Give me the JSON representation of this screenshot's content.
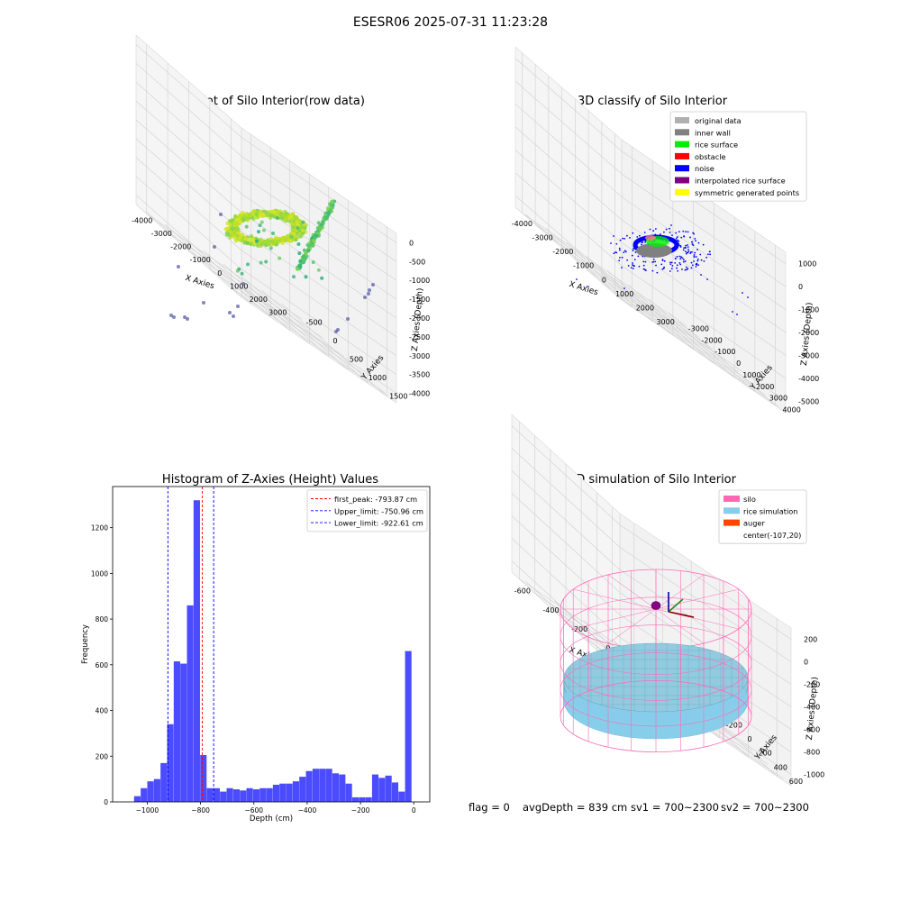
{
  "suptitle": "ESESR06 2025-07-31 11:23:28",
  "colors": {
    "hist_bar": "#4b4bff",
    "peak_line": "#ff0000",
    "limit_line": "#0000ff",
    "silo": "#ff69b4",
    "rice": "#87ceeb",
    "auger": "#ff4500",
    "noise": "#0000ff",
    "inner_wall": "#808080",
    "rice_surface": "#00ee00"
  },
  "footer": {
    "flag": "flag = 0",
    "avg_depth": "avgDepth = 839 cm",
    "sv1": "sv1 = 700~2300",
    "sv2": "sv2 = 700~2300"
  },
  "chart_data": [
    {
      "id": "raw3d",
      "type": "scatter",
      "projection": "3d",
      "title": "3D Plot of Silo Interior(row data)",
      "xlabel": "X Axies",
      "ylabel": "Y Axies",
      "zlabel": "Z Axies (Depth)",
      "xticks": [
        "-4000",
        "-3000",
        "-2000",
        "-1000",
        "0",
        "1000",
        "2000",
        "3000"
      ],
      "yticks": [
        "-500",
        "0",
        "500",
        "1000",
        "1500"
      ],
      "zticks": [
        "0",
        "-500",
        "-1000",
        "-1500",
        "-2000",
        "-2500",
        "-3000",
        "-3500",
        "-4000"
      ],
      "xlim": [
        -4200,
        3500
      ],
      "ylim": [
        -800,
        1800
      ],
      "zlim": [
        -4300,
        200
      ],
      "colormap": "viridis"
    },
    {
      "id": "class3d",
      "type": "scatter",
      "projection": "3d",
      "title": "3D classify of Silo Interior",
      "xlabel": "X Axies",
      "ylabel": "Y Axies",
      "zlabel": "Z Axies (Depth)",
      "xticks": [
        "-4000",
        "-3000",
        "-2000",
        "-1000",
        "0",
        "1000",
        "2000",
        "3000"
      ],
      "yticks": [
        "-3000",
        "-2000",
        "-1000",
        "0",
        "1000",
        "2000",
        "3000",
        "4000"
      ],
      "zticks": [
        "1000",
        "0",
        "-1000",
        "-2000",
        "-3000",
        "-4000",
        "-5000"
      ],
      "legend": [
        {
          "label": "original data",
          "color": "#b0b0b0"
        },
        {
          "label": "inner wall",
          "color": "#808080"
        },
        {
          "label": "rice surface",
          "color": "#00ee00"
        },
        {
          "label": "obstacle",
          "color": "#ff0000"
        },
        {
          "label": "noise",
          "color": "#0000ff"
        },
        {
          "label": "interpolated rice surface",
          "color": "#800080"
        },
        {
          "label": "symmetric generated points",
          "color": "#ffff00"
        }
      ],
      "legend_loc": "upper right"
    },
    {
      "id": "hist",
      "type": "bar",
      "title": "Histogram of Z-Axies (Height) Values",
      "xlabel": "Depth (cm)",
      "ylabel": "Frequency",
      "xlim": [
        -1130,
        60
      ],
      "ylim": [
        0,
        1380
      ],
      "xticks": [
        -1000,
        -800,
        -600,
        -400,
        -200,
        0
      ],
      "yticks": [
        0,
        200,
        400,
        600,
        800,
        1000,
        1200
      ],
      "bin_width": 24.8,
      "bin_start": -1049.5,
      "values": [
        25,
        60,
        90,
        100,
        170,
        340,
        615,
        605,
        860,
        1320,
        205,
        60,
        60,
        45,
        60,
        55,
        50,
        60,
        55,
        60,
        60,
        75,
        80,
        80,
        90,
        110,
        135,
        145,
        145,
        145,
        125,
        120,
        80,
        20,
        20,
        20,
        120,
        105,
        115,
        85,
        45,
        660
      ],
      "vlines": [
        {
          "x": -793.87,
          "label": "first_peak: -793.87 cm",
          "color": "#ff0000"
        },
        {
          "x": -750.96,
          "label": "Upper_limit: -750.96 cm",
          "color": "#0000ff"
        },
        {
          "x": -922.61,
          "label": "Lower_limit: -922.61 cm",
          "color": "#0000ff"
        }
      ],
      "legend_loc": "upper right"
    },
    {
      "id": "sim3d",
      "type": "area",
      "projection": "3d",
      "title": "3D simulation of Silo Interior",
      "xlabel": "X Axies",
      "ylabel": "Y Axies",
      "zlabel": "Z Axies (Depth)",
      "xticks": [
        "-600",
        "-400",
        "-200",
        "0",
        "200",
        "400"
      ],
      "yticks": [
        "-600",
        "-400",
        "-200",
        "0",
        "200",
        "400",
        "600"
      ],
      "zticks": [
        "200",
        "0",
        "-200",
        "-400",
        "-600",
        "-800",
        "-1000"
      ],
      "legend": [
        {
          "label": "silo",
          "color": "#ff69b4"
        },
        {
          "label": "rice simulation",
          "color": "#87ceeb"
        },
        {
          "label": "auger",
          "color": "#ff4500"
        },
        {
          "label": "center(-107,20)",
          "color": ""
        }
      ],
      "legend_loc": "upper right"
    }
  ]
}
